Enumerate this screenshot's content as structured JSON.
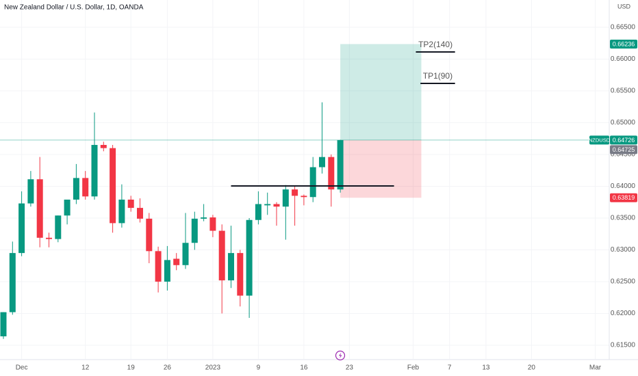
{
  "chart_data": {
    "type": "candlestick",
    "title": "New Zealand Dollar / U.S. Dollar, 1D, OANDA",
    "currency": "USD",
    "up_color": "#089981",
    "down_color": "#f23645",
    "candles": {
      "open": [
        0.6164,
        0.6202,
        0.6295,
        0.6373,
        0.6411,
        0.6319,
        0.6317,
        0.6354,
        0.6379,
        0.6413,
        0.6384,
        0.6465,
        0.646,
        0.6342,
        0.6379,
        0.6366,
        0.6349,
        0.6298,
        0.625,
        0.6286,
        0.6276,
        0.6311,
        0.6349,
        0.6351,
        0.633,
        0.6252,
        0.6295,
        0.6228,
        0.6347,
        0.637,
        0.6372,
        0.6368,
        0.6395,
        0.6385,
        0.6383,
        0.643,
        0.6446,
        0.6395
      ],
      "high": [
        0.6202,
        0.6313,
        0.6392,
        0.6424,
        0.6446,
        0.6327,
        0.6354,
        0.6379,
        0.6435,
        0.6424,
        0.6516,
        0.647,
        0.6465,
        0.6403,
        0.6385,
        0.6381,
        0.6358,
        0.6305,
        0.6306,
        0.6295,
        0.6358,
        0.636,
        0.6372,
        0.6355,
        0.634,
        0.6338,
        0.63,
        0.635,
        0.6392,
        0.639,
        0.6375,
        0.6402,
        0.64,
        0.6387,
        0.6446,
        0.6532,
        0.645,
        0.6473
      ],
      "low": [
        0.616,
        0.6198,
        0.629,
        0.6368,
        0.6304,
        0.6304,
        0.6312,
        0.634,
        0.6372,
        0.6379,
        0.6379,
        0.6455,
        0.6327,
        0.6335,
        0.636,
        0.6343,
        0.6279,
        0.6233,
        0.6236,
        0.6268,
        0.627,
        0.63,
        0.6345,
        0.632,
        0.62,
        0.624,
        0.6211,
        0.6193,
        0.634,
        0.6355,
        0.6338,
        0.6316,
        0.6338,
        0.637,
        0.6375,
        0.642,
        0.6368,
        0.639
      ],
      "close": [
        0.6202,
        0.6295,
        0.6373,
        0.6411,
        0.6319,
        0.6317,
        0.6354,
        0.6379,
        0.6413,
        0.6384,
        0.6465,
        0.646,
        0.6342,
        0.6379,
        0.6366,
        0.6349,
        0.6298,
        0.625,
        0.6284,
        0.6276,
        0.6311,
        0.6349,
        0.6351,
        0.633,
        0.6252,
        0.6295,
        0.6228,
        0.6347,
        0.6372,
        0.6372,
        0.6368,
        0.6395,
        0.6385,
        0.6383,
        0.643,
        0.6446,
        0.6395,
        0.64726
      ]
    },
    "xlim": [
      -0.376,
      66.54
    ],
    "xticks": [
      {
        "value": 2,
        "label": "Dec"
      },
      {
        "value": 9,
        "label": "12"
      },
      {
        "value": 14,
        "label": "19"
      },
      {
        "value": 18,
        "label": "26"
      },
      {
        "value": 23,
        "label": "2023"
      },
      {
        "value": 28,
        "label": "9"
      },
      {
        "value": 33,
        "label": "16"
      },
      {
        "value": 38,
        "label": "23"
      },
      {
        "value": 45,
        "label": "Feb"
      },
      {
        "value": 49,
        "label": "7"
      },
      {
        "value": 53,
        "label": "13"
      },
      {
        "value": 58,
        "label": "20"
      },
      {
        "value": 65,
        "label": "Mar"
      }
    ],
    "ylim": [
      0.61285,
      0.66929
    ],
    "yticks": [
      {
        "value": 0.615,
        "label": "0.61500"
      },
      {
        "value": 0.62,
        "label": "0.62000"
      },
      {
        "value": 0.625,
        "label": "0.62500"
      },
      {
        "value": 0.63,
        "label": "0.63000"
      },
      {
        "value": 0.635,
        "label": "0.63500"
      },
      {
        "value": 0.64,
        "label": "0.64000"
      },
      {
        "value": 0.645,
        "label": "0.64500"
      },
      {
        "value": 0.65,
        "label": "0.65000"
      },
      {
        "value": 0.655,
        "label": "0.65500"
      },
      {
        "value": 0.66,
        "label": "0.66000"
      },
      {
        "value": 0.665,
        "label": "0.66500"
      }
    ],
    "grid": true,
    "position": {
      "start": 37,
      "end": 45.9,
      "entry": 0.64726,
      "target": 0.66236,
      "stop": 0.63819
    },
    "lines": [
      {
        "label": "TP2(140)",
        "value": 0.66112,
        "start": 45.3,
        "end": 49.6
      },
      {
        "label": "TP1(90)",
        "value": 0.65617,
        "start": 45.8,
        "end": 49.6
      },
      {
        "value": 0.64005,
        "start": 25,
        "end": 42.9
      }
    ],
    "last_price_line": 0.64726,
    "price_tags": [
      {
        "value": 0.66236,
        "label": "0.66236",
        "color": "#089981"
      },
      {
        "symbol": "NZDUSD",
        "value": 0.64726,
        "label": "0.64726",
        "color": "#089981"
      },
      {
        "value": 0.64725,
        "label": "0.64725",
        "color": "#787b86"
      },
      {
        "value": 0.63819,
        "label": "0.63819",
        "color": "#f23645"
      }
    ]
  }
}
